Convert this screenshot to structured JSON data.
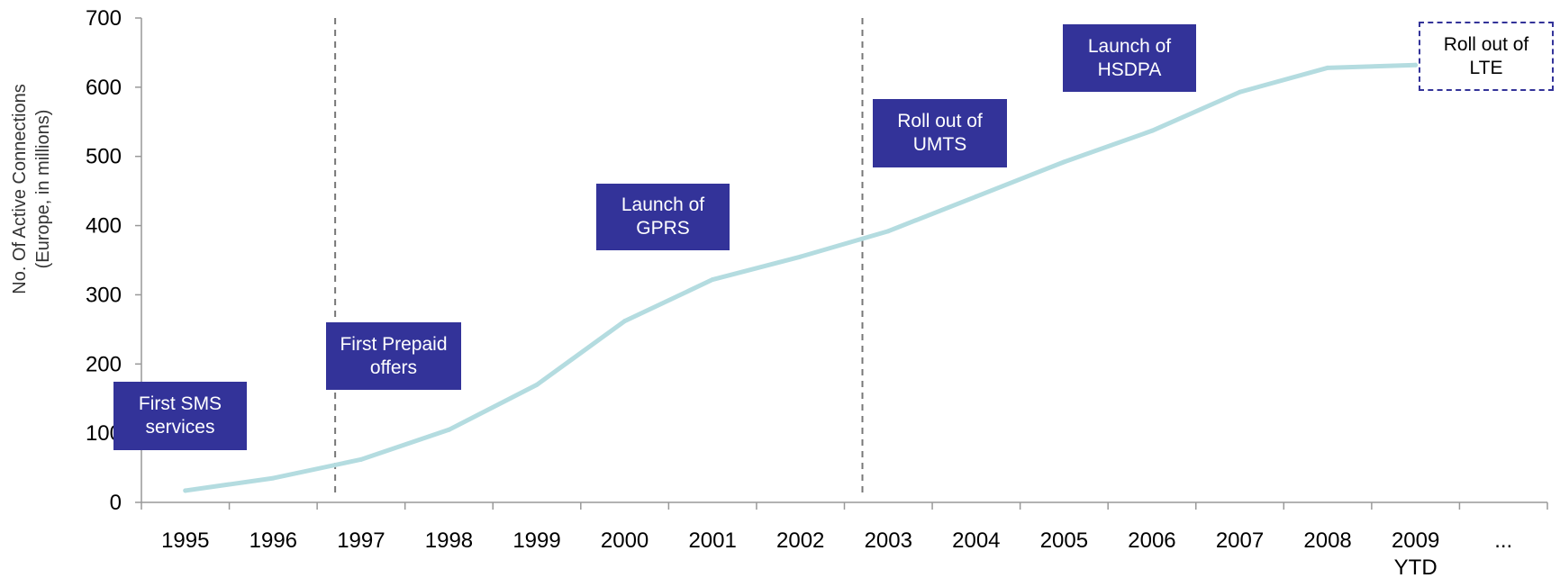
{
  "chart_data": {
    "type": "line",
    "ylabel": [
      "No. Of Active Connections",
      "(Europe, in millions)"
    ],
    "xlabel": "",
    "ylim": [
      0,
      700
    ],
    "yticks": [
      0,
      100,
      200,
      300,
      400,
      500,
      600,
      700
    ],
    "categories": [
      "1995",
      "1996",
      "1997",
      "1998",
      "1999",
      "2000",
      "2001",
      "2002",
      "2003",
      "2004",
      "2005",
      "2006",
      "2007",
      "2008",
      "2009\nYTD",
      "..."
    ],
    "series": [
      {
        "values": [
          17,
          35,
          62,
          105,
          170,
          262,
          322,
          355,
          392,
          442,
          492,
          537,
          593,
          628,
          632,
          null
        ]
      }
    ],
    "line_color": "#b4dce0",
    "grid": false,
    "annotations": [
      {
        "text": "First SMS\nservices",
        "year": "1995",
        "style": "filled"
      },
      {
        "text": "First Prepaid\noffers",
        "year": "1997",
        "style": "filled"
      },
      {
        "text": "Launch of\nGPRS",
        "year": "2000",
        "style": "filled"
      },
      {
        "text": "Roll out of\nUMTS",
        "year": "2003",
        "style": "filled"
      },
      {
        "text": "Launch of\nHSDPA",
        "year": "2005",
        "style": "filled"
      },
      {
        "text": "Roll out of\nLTE",
        "year": "2009",
        "style": "dashed"
      }
    ],
    "vertical_markers": [
      "1996/1997",
      "2002/2003"
    ],
    "colors": {
      "milestone_fill": "#333399",
      "milestone_text": "#ffffff",
      "marker_line": "#777777"
    }
  }
}
